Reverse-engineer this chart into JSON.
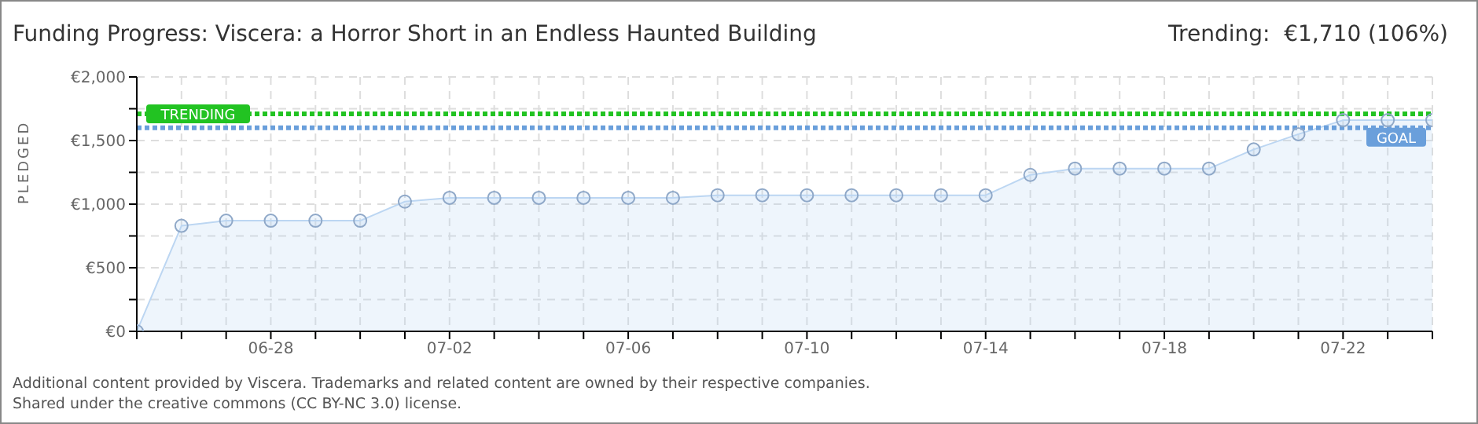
{
  "chart_data": {
    "type": "area",
    "title": "Funding Progress: Viscera: a Horror Short in an Endless Haunted Building",
    "subtitle": "Trending:  €1,710 (106%)",
    "ylabel": "PLEDGED",
    "x": [
      "--06-25",
      "--06-26",
      "--06-27",
      "--06-28",
      "--06-29",
      "--06-30",
      "--07-01",
      "--07-02",
      "--07-03",
      "--07-04",
      "--07-05",
      "--07-06",
      "--07-07",
      "--07-08",
      "--07-09",
      "--07-10",
      "--07-11",
      "--07-12",
      "--07-13",
      "--07-14",
      "--07-15",
      "--07-16",
      "--07-17",
      "--07-18",
      "--07-19",
      "--07-20",
      "--07-21",
      "--07-22",
      "--07-23",
      "--07-24"
    ],
    "series": [
      {
        "color": "#bcd6f2",
        "values": [
          0,
          830,
          870,
          870,
          870,
          870,
          1020,
          1050,
          1050,
          1050,
          1050,
          1050,
          1050,
          1070,
          1070,
          1070,
          1070,
          1070,
          1070,
          1070,
          1230,
          1280,
          1280,
          1280,
          1280,
          1430,
          1550,
          1660,
          1660,
          1660
        ]
      }
    ],
    "xlim": [
      "--06-25",
      "--07-24"
    ],
    "xticks": [
      {
        "value": "--06-25",
        "label": null
      },
      {
        "value": "--06-26",
        "label": null
      },
      {
        "value": "--06-27",
        "label": null
      },
      {
        "value": "--06-28",
        "label": "06-28"
      },
      {
        "value": "--06-29",
        "label": null
      },
      {
        "value": "--06-30",
        "label": null
      },
      {
        "value": "--07-01",
        "label": null
      },
      {
        "value": "--07-02",
        "label": "07-02"
      },
      {
        "value": "--07-03",
        "label": null
      },
      {
        "value": "--07-04",
        "label": null
      },
      {
        "value": "--07-05",
        "label": null
      },
      {
        "value": "--07-06",
        "label": "07-06"
      },
      {
        "value": "--07-07",
        "label": null
      },
      {
        "value": "--07-08",
        "label": null
      },
      {
        "value": "--07-09",
        "label": null
      },
      {
        "value": "--07-10",
        "label": "07-10"
      },
      {
        "value": "--07-11",
        "label": null
      },
      {
        "value": "--07-12",
        "label": null
      },
      {
        "value": "--07-13",
        "label": null
      },
      {
        "value": "--07-14",
        "label": "07-14"
      },
      {
        "value": "--07-15",
        "label": null
      },
      {
        "value": "--07-16",
        "label": null
      },
      {
        "value": "--07-17",
        "label": null
      },
      {
        "value": "--07-18",
        "label": "07-18"
      },
      {
        "value": "--07-19",
        "label": null
      },
      {
        "value": "--07-20",
        "label": null
      },
      {
        "value": "--07-21",
        "label": null
      },
      {
        "value": "--07-22",
        "label": "07-22"
      },
      {
        "value": "--07-23",
        "label": null
      },
      {
        "value": "--07-24",
        "label": null
      }
    ],
    "ylim": [
      0,
      2000
    ],
    "yticks": [
      {
        "value": 0,
        "label": "€0"
      },
      {
        "value": 250,
        "label": null
      },
      {
        "value": 500,
        "label": "€500"
      },
      {
        "value": 750,
        "label": null
      },
      {
        "value": 1000,
        "label": "€1,000"
      },
      {
        "value": 1250,
        "label": null
      },
      {
        "value": 1500,
        "label": "€1,500"
      },
      {
        "value": 1750,
        "label": null
      },
      {
        "value": 2000,
        "label": "€2,000"
      }
    ],
    "ref_lines": [
      {
        "axis": "y",
        "value": 1710,
        "label": "TRENDING",
        "color": "#22c322",
        "line_style": "dotted"
      },
      {
        "axis": "y",
        "value": 1600,
        "label": "GOAL",
        "color": "#6a9fdb",
        "line_style": "dotted"
      }
    ],
    "grid": true,
    "marker": "circle",
    "legend": false,
    "annotations": [
      "Additional content provided by Viscera. Trademarks and related content are owned by their respective companies.",
      "Shared under the creative commons (CC BY-NC 3.0) license."
    ]
  }
}
